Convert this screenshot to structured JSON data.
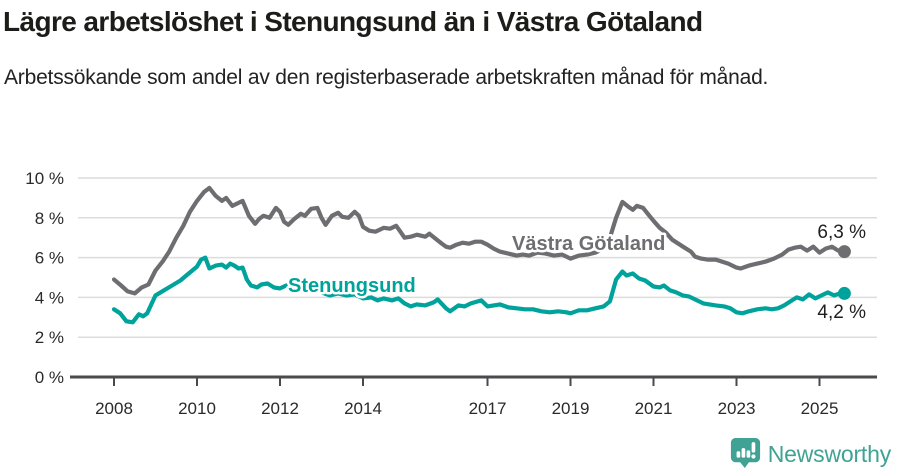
{
  "header": {
    "title": "Lägre arbetslöshet i Stenungsund än i Västra Götaland",
    "subtitle": "Arbetssökande som andel av den registerbaserade arbetskraften månad för månad."
  },
  "colors": {
    "vastra_gotaland": "#6e6e72",
    "stenungsund": "#00a39b",
    "grid": "#dcdcdc",
    "axis": "#4a4a4c",
    "tick_text": "#2a2a2a",
    "end_label_text": "#1f1f1f",
    "brand": "#3fa294"
  },
  "chart_data": {
    "type": "line",
    "title": "Lägre arbetslöshet i Stenungsund än i Västra Götaland",
    "subtitle": "Arbetssökande som andel av den registerbaserade arbetskraften månad för månad.",
    "unit": "%",
    "ylim": [
      0,
      10
    ],
    "xlim": [
      2007.6,
      2026.4
    ],
    "grid": "horizontal",
    "legend_position": "inline-labels",
    "y_ticks": [
      [
        0,
        "0 %"
      ],
      [
        2,
        "2 %"
      ],
      [
        4,
        "4 %"
      ],
      [
        6,
        "6 %"
      ],
      [
        8,
        "8 %"
      ],
      [
        10,
        "10 %"
      ]
    ],
    "x_ticks": [
      [
        2008,
        "2008"
      ],
      [
        2010,
        "2010"
      ],
      [
        2012,
        "2012"
      ],
      [
        2014,
        "2014"
      ],
      [
        2017,
        "2017"
      ],
      [
        2019,
        "2019"
      ],
      [
        2021,
        "2021"
      ],
      [
        2023,
        "2023"
      ],
      [
        2025,
        "2025"
      ]
    ],
    "series": [
      {
        "name": "Västra Götaland",
        "color": "#6e6e72",
        "end_label": "6,3 %",
        "last_value": 6.3,
        "points": [
          [
            2008.0,
            4.9
          ],
          [
            2008.17,
            4.6
          ],
          [
            2008.33,
            4.3
          ],
          [
            2008.5,
            4.2
          ],
          [
            2008.67,
            4.5
          ],
          [
            2008.83,
            4.65
          ],
          [
            2009.0,
            5.35
          ],
          [
            2009.17,
            5.8
          ],
          [
            2009.33,
            6.3
          ],
          [
            2009.5,
            7.0
          ],
          [
            2009.67,
            7.6
          ],
          [
            2009.83,
            8.3
          ],
          [
            2010.0,
            8.85
          ],
          [
            2010.17,
            9.3
          ],
          [
            2010.3,
            9.5
          ],
          [
            2010.45,
            9.1
          ],
          [
            2010.6,
            8.85
          ],
          [
            2010.7,
            9.0
          ],
          [
            2010.85,
            8.6
          ],
          [
            2011.0,
            8.75
          ],
          [
            2011.1,
            8.85
          ],
          [
            2011.25,
            8.1
          ],
          [
            2011.4,
            7.7
          ],
          [
            2011.5,
            7.95
          ],
          [
            2011.6,
            8.1
          ],
          [
            2011.75,
            8.0
          ],
          [
            2011.9,
            8.5
          ],
          [
            2012.0,
            8.3
          ],
          [
            2012.1,
            7.8
          ],
          [
            2012.2,
            7.65
          ],
          [
            2012.35,
            7.95
          ],
          [
            2012.5,
            8.2
          ],
          [
            2012.6,
            8.1
          ],
          [
            2012.75,
            8.45
          ],
          [
            2012.9,
            8.5
          ],
          [
            2013.0,
            8.0
          ],
          [
            2013.1,
            7.65
          ],
          [
            2013.25,
            8.1
          ],
          [
            2013.4,
            8.25
          ],
          [
            2013.5,
            8.05
          ],
          [
            2013.65,
            8.0
          ],
          [
            2013.8,
            8.3
          ],
          [
            2013.9,
            8.1
          ],
          [
            2014.0,
            7.55
          ],
          [
            2014.15,
            7.35
          ],
          [
            2014.3,
            7.3
          ],
          [
            2014.5,
            7.5
          ],
          [
            2014.65,
            7.45
          ],
          [
            2014.8,
            7.6
          ],
          [
            2014.9,
            7.3
          ],
          [
            2015.0,
            7.0
          ],
          [
            2015.15,
            7.05
          ],
          [
            2015.3,
            7.15
          ],
          [
            2015.5,
            7.05
          ],
          [
            2015.6,
            7.2
          ],
          [
            2015.75,
            6.95
          ],
          [
            2015.9,
            6.7
          ],
          [
            2016.0,
            6.55
          ],
          [
            2016.1,
            6.5
          ],
          [
            2016.25,
            6.65
          ],
          [
            2016.4,
            6.75
          ],
          [
            2016.55,
            6.7
          ],
          [
            2016.7,
            6.8
          ],
          [
            2016.85,
            6.8
          ],
          [
            2017.0,
            6.65
          ],
          [
            2017.15,
            6.45
          ],
          [
            2017.3,
            6.3
          ],
          [
            2017.5,
            6.2
          ],
          [
            2017.7,
            6.1
          ],
          [
            2017.85,
            6.15
          ],
          [
            2018.0,
            6.1
          ],
          [
            2018.2,
            6.25
          ],
          [
            2018.4,
            6.2
          ],
          [
            2018.6,
            6.1
          ],
          [
            2018.8,
            6.15
          ],
          [
            2019.0,
            5.95
          ],
          [
            2019.2,
            6.1
          ],
          [
            2019.4,
            6.15
          ],
          [
            2019.6,
            6.25
          ],
          [
            2019.8,
            6.45
          ],
          [
            2019.95,
            7.0
          ],
          [
            2020.1,
            8.0
          ],
          [
            2020.25,
            8.8
          ],
          [
            2020.4,
            8.55
          ],
          [
            2020.5,
            8.4
          ],
          [
            2020.6,
            8.6
          ],
          [
            2020.75,
            8.5
          ],
          [
            2020.9,
            8.1
          ],
          [
            2021.0,
            7.85
          ],
          [
            2021.15,
            7.5
          ],
          [
            2021.3,
            7.25
          ],
          [
            2021.45,
            6.9
          ],
          [
            2021.6,
            6.7
          ],
          [
            2021.75,
            6.5
          ],
          [
            2021.9,
            6.3
          ],
          [
            2022.0,
            6.05
          ],
          [
            2022.15,
            5.95
          ],
          [
            2022.3,
            5.9
          ],
          [
            2022.5,
            5.9
          ],
          [
            2022.65,
            5.8
          ],
          [
            2022.8,
            5.7
          ],
          [
            2023.0,
            5.5
          ],
          [
            2023.1,
            5.45
          ],
          [
            2023.3,
            5.6
          ],
          [
            2023.5,
            5.7
          ],
          [
            2023.7,
            5.8
          ],
          [
            2023.9,
            5.95
          ],
          [
            2024.1,
            6.15
          ],
          [
            2024.25,
            6.4
          ],
          [
            2024.4,
            6.5
          ],
          [
            2024.55,
            6.55
          ],
          [
            2024.7,
            6.35
          ],
          [
            2024.85,
            6.55
          ],
          [
            2025.0,
            6.25
          ],
          [
            2025.15,
            6.45
          ],
          [
            2025.3,
            6.55
          ],
          [
            2025.45,
            6.35
          ],
          [
            2025.6,
            6.3
          ]
        ]
      },
      {
        "name": "Stenungsund",
        "color": "#00a39b",
        "end_label": "4,2 %",
        "last_value": 4.2,
        "points": [
          [
            2008.0,
            3.4
          ],
          [
            2008.15,
            3.2
          ],
          [
            2008.3,
            2.8
          ],
          [
            2008.45,
            2.75
          ],
          [
            2008.6,
            3.15
          ],
          [
            2008.7,
            3.05
          ],
          [
            2008.8,
            3.2
          ],
          [
            2009.0,
            4.1
          ],
          [
            2009.2,
            4.35
          ],
          [
            2009.4,
            4.6
          ],
          [
            2009.6,
            4.85
          ],
          [
            2009.8,
            5.2
          ],
          [
            2010.0,
            5.55
          ],
          [
            2010.1,
            5.9
          ],
          [
            2010.2,
            6.0
          ],
          [
            2010.3,
            5.45
          ],
          [
            2010.45,
            5.6
          ],
          [
            2010.6,
            5.65
          ],
          [
            2010.7,
            5.5
          ],
          [
            2010.8,
            5.7
          ],
          [
            2010.9,
            5.6
          ],
          [
            2011.0,
            5.45
          ],
          [
            2011.1,
            5.5
          ],
          [
            2011.2,
            4.9
          ],
          [
            2011.3,
            4.6
          ],
          [
            2011.45,
            4.5
          ],
          [
            2011.55,
            4.65
          ],
          [
            2011.7,
            4.7
          ],
          [
            2011.85,
            4.5
          ],
          [
            2012.0,
            4.45
          ],
          [
            2012.15,
            4.6
          ],
          [
            2012.3,
            4.55
          ],
          [
            2012.5,
            4.65
          ],
          [
            2012.7,
            4.6
          ],
          [
            2012.85,
            4.5
          ],
          [
            2013.0,
            4.25
          ],
          [
            2013.2,
            4.1
          ],
          [
            2013.4,
            4.2
          ],
          [
            2013.6,
            4.1
          ],
          [
            2013.8,
            4.15
          ],
          [
            2014.0,
            3.95
          ],
          [
            2014.2,
            4.0
          ],
          [
            2014.35,
            3.85
          ],
          [
            2014.5,
            3.95
          ],
          [
            2014.7,
            3.85
          ],
          [
            2014.85,
            3.95
          ],
          [
            2015.0,
            3.7
          ],
          [
            2015.15,
            3.55
          ],
          [
            2015.3,
            3.65
          ],
          [
            2015.5,
            3.6
          ],
          [
            2015.7,
            3.75
          ],
          [
            2015.8,
            3.9
          ],
          [
            2016.0,
            3.45
          ],
          [
            2016.1,
            3.3
          ],
          [
            2016.3,
            3.6
          ],
          [
            2016.45,
            3.55
          ],
          [
            2016.6,
            3.7
          ],
          [
            2016.85,
            3.85
          ],
          [
            2017.0,
            3.55
          ],
          [
            2017.15,
            3.6
          ],
          [
            2017.3,
            3.65
          ],
          [
            2017.5,
            3.5
          ],
          [
            2017.7,
            3.45
          ],
          [
            2017.9,
            3.4
          ],
          [
            2018.1,
            3.4
          ],
          [
            2018.3,
            3.3
          ],
          [
            2018.5,
            3.25
          ],
          [
            2018.7,
            3.3
          ],
          [
            2018.9,
            3.25
          ],
          [
            2019.0,
            3.2
          ],
          [
            2019.2,
            3.35
          ],
          [
            2019.4,
            3.35
          ],
          [
            2019.6,
            3.45
          ],
          [
            2019.8,
            3.55
          ],
          [
            2019.95,
            3.8
          ],
          [
            2020.1,
            4.9
          ],
          [
            2020.25,
            5.3
          ],
          [
            2020.35,
            5.1
          ],
          [
            2020.5,
            5.2
          ],
          [
            2020.65,
            4.95
          ],
          [
            2020.8,
            4.85
          ],
          [
            2021.0,
            4.55
          ],
          [
            2021.15,
            4.5
          ],
          [
            2021.25,
            4.6
          ],
          [
            2021.4,
            4.35
          ],
          [
            2021.55,
            4.25
          ],
          [
            2021.7,
            4.1
          ],
          [
            2021.85,
            4.05
          ],
          [
            2022.0,
            3.9
          ],
          [
            2022.2,
            3.7
          ],
          [
            2022.35,
            3.65
          ],
          [
            2022.5,
            3.6
          ],
          [
            2022.7,
            3.55
          ],
          [
            2022.85,
            3.45
          ],
          [
            2023.0,
            3.25
          ],
          [
            2023.15,
            3.2
          ],
          [
            2023.3,
            3.3
          ],
          [
            2023.5,
            3.4
          ],
          [
            2023.7,
            3.45
          ],
          [
            2023.85,
            3.4
          ],
          [
            2024.0,
            3.45
          ],
          [
            2024.15,
            3.6
          ],
          [
            2024.3,
            3.8
          ],
          [
            2024.45,
            4.0
          ],
          [
            2024.6,
            3.9
          ],
          [
            2024.75,
            4.15
          ],
          [
            2024.9,
            3.95
          ],
          [
            2025.05,
            4.1
          ],
          [
            2025.2,
            4.25
          ],
          [
            2025.35,
            4.1
          ],
          [
            2025.5,
            4.2
          ],
          [
            2025.6,
            4.2
          ]
        ]
      }
    ]
  },
  "footer": {
    "brand": "Newsworthy"
  }
}
